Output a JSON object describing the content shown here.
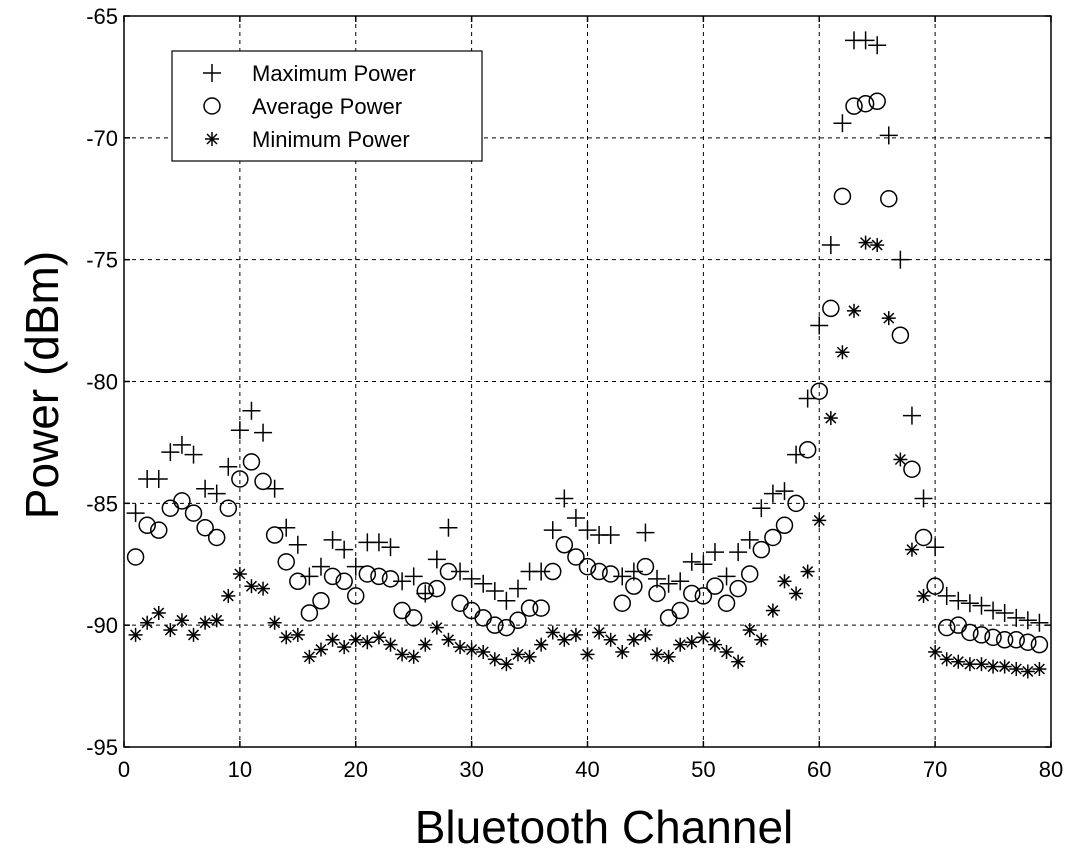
{
  "chart_data": {
    "type": "scatter",
    "title": "",
    "xlabel": "Bluetooth Channel",
    "ylabel": "Power (dBm)",
    "xlim": [
      0,
      80
    ],
    "ylim": [
      -95,
      -65
    ],
    "xticks": [
      0,
      10,
      20,
      30,
      40,
      50,
      60,
      70,
      80
    ],
    "yticks": [
      -65,
      -70,
      -75,
      -80,
      -85,
      -90,
      -95
    ],
    "xtick_labels": [
      "0",
      "10",
      "20",
      "30",
      "40",
      "50",
      "60",
      "70",
      "80"
    ],
    "ytick_labels": [
      "-65",
      "-70",
      "-75",
      "-80",
      "-85",
      "-90",
      "-95"
    ],
    "grid": true,
    "legend_position": "top-left",
    "series": [
      {
        "name": "Maximum Power",
        "marker": "plus",
        "x": [
          1,
          2,
          3,
          4,
          5,
          6,
          7,
          8,
          9,
          10,
          11,
          12,
          13,
          14,
          15,
          16,
          17,
          18,
          19,
          20,
          21,
          22,
          23,
          24,
          25,
          26,
          27,
          28,
          29,
          30,
          31,
          32,
          33,
          34,
          35,
          36,
          37,
          38,
          39,
          40,
          41,
          42,
          43,
          44,
          45,
          46,
          47,
          48,
          49,
          50,
          51,
          52,
          53,
          54,
          55,
          56,
          57,
          58,
          59,
          60,
          61,
          62,
          63,
          64,
          65,
          66,
          67,
          68,
          69,
          70,
          71,
          72,
          73,
          74,
          75,
          76,
          77,
          78,
          79
        ],
        "y": [
          -85.4,
          -84,
          -84,
          -82.9,
          -82.6,
          -83,
          -84.4,
          -84.6,
          -83.5,
          -82,
          -81.2,
          -82.1,
          -84.4,
          -86,
          -86.7,
          -88,
          -87.6,
          -86.5,
          -86.9,
          -87.6,
          -86.6,
          -86.6,
          -86.8,
          -88.2,
          -88,
          -88.7,
          -87.3,
          -86,
          -87.8,
          -88.1,
          -88.3,
          -88.6,
          -89,
          -88.5,
          -87.8,
          -87.8,
          -86.1,
          -84.8,
          -85.6,
          -86.1,
          -86.3,
          -86.3,
          -88,
          -87.8,
          -86.2,
          -88.1,
          -88.3,
          -88.2,
          -87.4,
          -87.5,
          -87,
          -88,
          -87,
          -86.5,
          -85.2,
          -84.6,
          -84.5,
          -83,
          -80.7,
          -77.7,
          -74.4,
          -69.4,
          -66,
          -66,
          -66.2,
          -69.9,
          -75,
          -81.4,
          -84.8,
          -86.8,
          -88.8,
          -89,
          -89.1,
          -89.2,
          -89.4,
          -89.5,
          -89.7,
          -89.8,
          -89.9
        ]
      },
      {
        "name": "Average Power",
        "marker": "circle",
        "x": [
          1,
          2,
          3,
          4,
          5,
          6,
          7,
          8,
          9,
          10,
          11,
          12,
          13,
          14,
          15,
          16,
          17,
          18,
          19,
          20,
          21,
          22,
          23,
          24,
          25,
          26,
          27,
          28,
          29,
          30,
          31,
          32,
          33,
          34,
          35,
          36,
          37,
          38,
          39,
          40,
          41,
          42,
          43,
          44,
          45,
          46,
          47,
          48,
          49,
          50,
          51,
          52,
          53,
          54,
          55,
          56,
          57,
          58,
          59,
          60,
          61,
          62,
          63,
          64,
          65,
          66,
          67,
          68,
          69,
          70,
          71,
          72,
          73,
          74,
          75,
          76,
          77,
          78,
          79
        ],
        "y": [
          -87.2,
          -85.9,
          -86.1,
          -85.2,
          -84.9,
          -85.4,
          -86,
          -86.4,
          -85.2,
          -84,
          -83.3,
          -84.1,
          -86.3,
          -87.4,
          -88.2,
          -89.5,
          -89,
          -88,
          -88.2,
          -88.8,
          -87.9,
          -88,
          -88.1,
          -89.4,
          -89.7,
          -88.6,
          -88.5,
          -87.8,
          -89.1,
          -89.4,
          -89.7,
          -90,
          -90.1,
          -89.8,
          -89.3,
          -89.3,
          -87.8,
          -86.7,
          -87.2,
          -87.6,
          -87.8,
          -87.9,
          -89.1,
          -88.4,
          -87.6,
          -88.7,
          -89.7,
          -89.4,
          -88.7,
          -88.8,
          -88.4,
          -89.1,
          -88.5,
          -87.9,
          -86.9,
          -86.4,
          -85.9,
          -85,
          -82.8,
          -80.4,
          -77,
          -72.4,
          -68.7,
          -68.6,
          -68.5,
          -72.5,
          -78.1,
          -83.6,
          -86.4,
          -88.4,
          -90.1,
          -90,
          -90.3,
          -90.4,
          -90.5,
          -90.6,
          -90.6,
          -90.7,
          -90.8
        ]
      },
      {
        "name": "Minimum Power",
        "marker": "asterisk",
        "x": [
          1,
          2,
          3,
          4,
          5,
          6,
          7,
          8,
          9,
          10,
          11,
          12,
          13,
          14,
          15,
          16,
          17,
          18,
          19,
          20,
          21,
          22,
          23,
          24,
          25,
          26,
          27,
          28,
          29,
          30,
          31,
          32,
          33,
          34,
          35,
          36,
          37,
          38,
          39,
          40,
          41,
          42,
          43,
          44,
          45,
          46,
          47,
          48,
          49,
          50,
          51,
          52,
          53,
          54,
          55,
          56,
          57,
          58,
          59,
          60,
          61,
          62,
          63,
          64,
          65,
          66,
          67,
          68,
          69,
          70,
          71,
          72,
          73,
          74,
          75,
          76,
          77,
          78,
          79
        ],
        "y": [
          -90.4,
          -89.9,
          -89.5,
          -90.2,
          -89.8,
          -90.4,
          -89.9,
          -89.8,
          -88.8,
          -87.9,
          -88.4,
          -88.5,
          -89.9,
          -90.5,
          -90.4,
          -91.3,
          -91,
          -90.6,
          -90.9,
          -90.6,
          -90.7,
          -90.5,
          -90.8,
          -91.2,
          -91.3,
          -90.8,
          -90.1,
          -90.6,
          -90.9,
          -91,
          -91.1,
          -91.4,
          -91.6,
          -91.2,
          -91.3,
          -90.8,
          -90.3,
          -90.6,
          -90.4,
          -91.2,
          -90.3,
          -90.6,
          -91.1,
          -90.6,
          -90.4,
          -91.2,
          -91.3,
          -90.8,
          -90.7,
          -90.5,
          -90.8,
          -91.1,
          -91.5,
          -90.2,
          -90.6,
          -89.4,
          -88.2,
          -88.7,
          -87.8,
          -85.7,
          -81.5,
          -78.8,
          -77.1,
          -74.3,
          -74.4,
          -77.4,
          -83.2,
          -86.9,
          -88.8,
          -91.1,
          -91.4,
          -91.5,
          -91.6,
          -91.6,
          -91.7,
          -91.7,
          -91.8,
          -91.9,
          -91.8
        ]
      }
    ]
  }
}
